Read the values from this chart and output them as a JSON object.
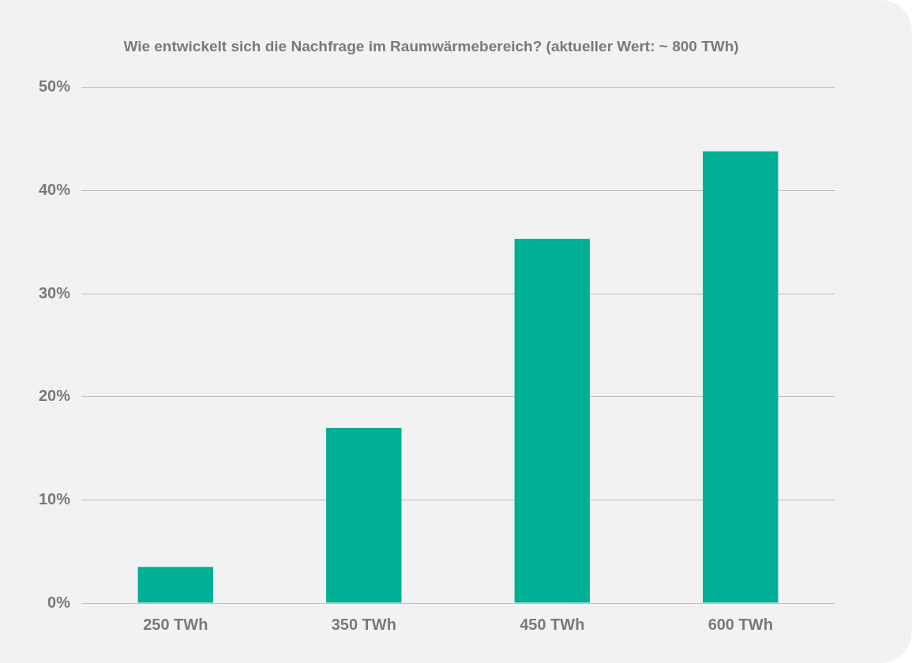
{
  "chart_data": {
    "type": "bar",
    "title": "Wie entwickelt sich die Nachfrage im Raumwärmebereich? (aktueller Wert: ~ 800 TWh)",
    "categories": [
      "250 TWh",
      "350 TWh",
      "450 TWh",
      "600 TWh"
    ],
    "values": [
      3.5,
      17,
      35.3,
      43.8
    ],
    "color": "#00b096",
    "ylim": [
      0,
      50
    ],
    "yticks": [
      {
        "value": 0,
        "label": "0%"
      },
      {
        "value": 10,
        "label": "10%"
      },
      {
        "value": 20,
        "label": "20%"
      },
      {
        "value": 30,
        "label": "30%"
      },
      {
        "value": 40,
        "label": "40%"
      },
      {
        "value": 50,
        "label": "50%"
      }
    ],
    "grid": "y",
    "legend": false
  }
}
